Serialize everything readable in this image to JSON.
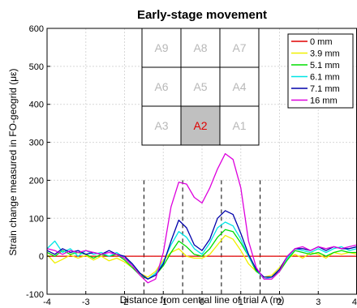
{
  "chart_data": {
    "type": "line",
    "title": "Early-stage movement",
    "xlabel": "Distance from central line of trial A (m)",
    "ylabel": "Strain change measured in FO-geogrid (με)",
    "xlim": [
      -4,
      4
    ],
    "ylim": [
      -100,
      600
    ],
    "xticks": [
      -4,
      -3,
      -2,
      -1,
      0,
      1,
      2,
      3,
      4
    ],
    "yticks": [
      -100,
      0,
      100,
      200,
      300,
      400,
      500,
      600
    ],
    "grid": true,
    "legend_position": "top-right",
    "reference_lines_x": [
      -1.5,
      -0.5,
      0.5,
      1.5
    ],
    "series": [
      {
        "name": "0 mm",
        "color": "#e00000",
        "x": [
          -4,
          4
        ],
        "y": [
          0,
          0
        ]
      },
      {
        "name": "3.9 mm",
        "color": "#f0f000",
        "x": [
          -4,
          -3.8,
          -3.6,
          -3.4,
          -3.2,
          -3,
          -2.8,
          -2.6,
          -2.4,
          -2.2,
          -2,
          -1.8,
          -1.6,
          -1.4,
          -1.2,
          -1,
          -0.8,
          -0.6,
          -0.4,
          -0.2,
          0,
          0.2,
          0.4,
          0.6,
          0.8,
          1,
          1.2,
          1.4,
          1.6,
          1.8,
          2,
          2.2,
          2.4,
          2.6,
          2.8,
          3,
          3.2,
          3.4,
          3.6,
          3.8,
          4
        ],
        "y": [
          5,
          -18,
          -8,
          3,
          -5,
          2,
          -10,
          0,
          -12,
          -5,
          -15,
          -30,
          -45,
          -55,
          -40,
          -10,
          10,
          20,
          0,
          -5,
          -5,
          5,
          30,
          55,
          45,
          15,
          -20,
          -40,
          -55,
          -50,
          -30,
          -5,
          5,
          -5,
          10,
          5,
          -5,
          10,
          5,
          10,
          5
        ]
      },
      {
        "name": "5.1 mm",
        "color": "#00dd00",
        "x": [
          -4,
          -3.8,
          -3.6,
          -3.4,
          -3.2,
          -3,
          -2.8,
          -2.6,
          -2.4,
          -2.2,
          -2,
          -1.8,
          -1.6,
          -1.4,
          -1.2,
          -1,
          -0.8,
          -0.6,
          -0.4,
          -0.2,
          0,
          0.2,
          0.4,
          0.6,
          0.8,
          1,
          1.2,
          1.4,
          1.6,
          1.8,
          2,
          2.2,
          2.4,
          2.6,
          2.8,
          3,
          3.2,
          3.4,
          3.6,
          3.8,
          4
        ],
        "y": [
          10,
          0,
          15,
          5,
          10,
          5,
          -5,
          5,
          0,
          5,
          -10,
          -30,
          -50,
          -60,
          -50,
          -25,
          10,
          40,
          25,
          5,
          0,
          20,
          50,
          70,
          65,
          35,
          0,
          -40,
          -55,
          -55,
          -40,
          -10,
          15,
          10,
          5,
          10,
          0,
          10,
          15,
          10,
          10
        ]
      },
      {
        "name": "6.1 mm",
        "color": "#00e5e5",
        "x": [
          -4,
          -3.8,
          -3.6,
          -3.4,
          -3.2,
          -3,
          -2.8,
          -2.6,
          -2.4,
          -2.2,
          -2,
          -1.8,
          -1.6,
          -1.4,
          -1.2,
          -1,
          -0.8,
          -0.6,
          -0.4,
          -0.2,
          0,
          0.2,
          0.4,
          0.6,
          0.8,
          1,
          1.2,
          1.4,
          1.6,
          1.8,
          2,
          2.2,
          2.4,
          2.6,
          2.8,
          3,
          3.2,
          3.4,
          3.6,
          3.8,
          4
        ],
        "y": [
          20,
          40,
          10,
          20,
          0,
          15,
          5,
          10,
          0,
          10,
          -5,
          -20,
          -45,
          -60,
          -45,
          -15,
          30,
          65,
          50,
          20,
          5,
          35,
          75,
          90,
          80,
          45,
          0,
          -35,
          -60,
          -55,
          -35,
          -5,
          20,
          15,
          10,
          20,
          10,
          20,
          25,
          15,
          20
        ]
      },
      {
        "name": "7.1 mm",
        "color": "#0000aa",
        "x": [
          -4,
          -3.8,
          -3.6,
          -3.4,
          -3.2,
          -3,
          -2.8,
          -2.6,
          -2.4,
          -2.2,
          -2,
          -1.8,
          -1.6,
          -1.4,
          -1.2,
          -1,
          -0.8,
          -0.6,
          -0.4,
          -0.2,
          0,
          0.2,
          0.4,
          0.6,
          0.8,
          1,
          1.2,
          1.4,
          1.6,
          1.8,
          2,
          2.2,
          2.4,
          2.6,
          2.8,
          3,
          3.2,
          3.4,
          3.6,
          3.8,
          4
        ],
        "y": [
          15,
          5,
          20,
          10,
          15,
          5,
          10,
          5,
          15,
          5,
          0,
          -20,
          -45,
          -60,
          -50,
          -20,
          40,
          95,
          75,
          30,
          15,
          45,
          100,
          120,
          110,
          60,
          5,
          -35,
          -55,
          -55,
          -35,
          0,
          20,
          20,
          15,
          25,
          15,
          25,
          20,
          20,
          25
        ]
      },
      {
        "name": "16 mm",
        "color": "#dd00dd",
        "x": [
          -4,
          -3.8,
          -3.6,
          -3.4,
          -3.2,
          -3,
          -2.8,
          -2.6,
          -2.4,
          -2.2,
          -2,
          -1.8,
          -1.6,
          -1.4,
          -1.2,
          -1,
          -0.8,
          -0.6,
          -0.4,
          -0.2,
          0,
          0.2,
          0.4,
          0.6,
          0.8,
          1,
          1.2,
          1.4,
          1.6,
          1.8,
          2,
          2.2,
          2.4,
          2.6,
          2.8,
          3,
          3.2,
          3.4,
          3.6,
          3.8,
          4
        ],
        "y": [
          20,
          15,
          5,
          15,
          10,
          15,
          10,
          5,
          10,
          5,
          -5,
          -25,
          -50,
          -70,
          -60,
          10,
          130,
          195,
          190,
          155,
          140,
          180,
          230,
          270,
          255,
          180,
          40,
          -30,
          -60,
          -60,
          -40,
          0,
          20,
          25,
          15,
          25,
          20,
          25,
          20,
          25,
          30
        ]
      }
    ],
    "inset_grid": {
      "cells": [
        [
          "A9",
          "A8",
          "A7"
        ],
        [
          "A6",
          "A5",
          "A4"
        ],
        [
          "A3",
          "A2",
          "A1"
        ]
      ],
      "highlighted": "A2",
      "highlight_fill": "#c0c0c0",
      "highlight_text_color": "#e00000",
      "text_color": "#b8b8b8"
    }
  }
}
